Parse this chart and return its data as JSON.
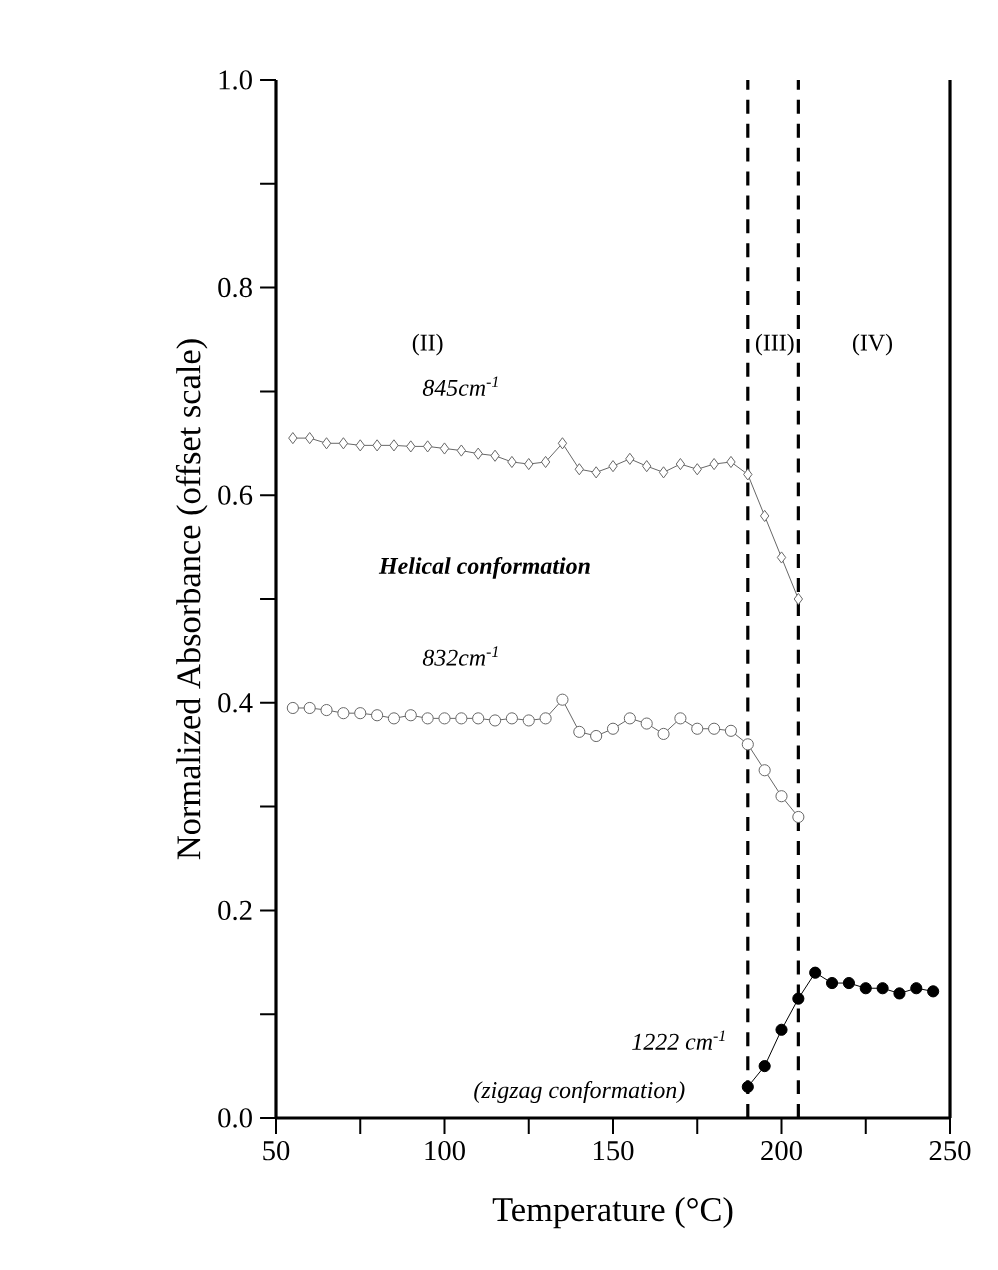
{
  "chart_data": {
    "type": "line",
    "xlabel": "Temperature (°C)",
    "ylabel": "Normalized  Absorbance (offset scale)",
    "xlim": [
      50,
      250
    ],
    "ylim": [
      0,
      1
    ],
    "xticks": [
      50,
      {
        "value": 75,
        "label": null
      },
      100,
      {
        "value": 125,
        "label": null
      },
      150,
      {
        "value": 175,
        "label": null
      },
      200,
      {
        "value": 225,
        "label": null
      },
      250
    ],
    "yticks": [
      {
        "value": 0,
        "label": "0.0"
      },
      {
        "value": 0.1,
        "label": null
      },
      0.2,
      {
        "value": 0.3,
        "label": null
      },
      0.4,
      {
        "value": 0.5,
        "label": null
      },
      0.6,
      {
        "value": 0.7,
        "label": null
      },
      0.8,
      {
        "value": 0.9,
        "label": null
      },
      {
        "value": 1,
        "label": "1.0"
      }
    ],
    "grid": false,
    "line_style": "solid",
    "series": [
      {
        "name": "845cm$^{-1}$",
        "color": "#666666",
        "marker": "diamond",
        "x": [
          55,
          60,
          65,
          70,
          75,
          80,
          85,
          90,
          95,
          100,
          105,
          110,
          115,
          120,
          125,
          130,
          135,
          140,
          145,
          150,
          155,
          160,
          165,
          170,
          175,
          180,
          185,
          190,
          195,
          200,
          205
        ],
        "values": [
          0.655,
          0.655,
          0.65,
          0.65,
          0.648,
          0.648,
          0.648,
          0.647,
          0.647,
          0.645,
          0.643,
          0.64,
          0.638,
          0.632,
          0.63,
          0.632,
          0.65,
          0.625,
          0.622,
          0.628,
          0.635,
          0.628,
          0.622,
          0.63,
          0.625,
          0.63,
          0.632,
          0.62,
          0.58,
          0.54,
          0.5
        ]
      },
      {
        "name": "832cm$^{-1}$",
        "color": "#666666",
        "marker": "circle",
        "x": [
          55,
          60,
          65,
          70,
          75,
          80,
          85,
          90,
          95,
          100,
          105,
          110,
          115,
          120,
          125,
          130,
          135,
          140,
          145,
          150,
          155,
          160,
          165,
          170,
          175,
          180,
          185,
          190,
          195,
          200,
          205
        ],
        "values": [
          0.395,
          0.395,
          0.393,
          0.39,
          0.39,
          0.388,
          0.385,
          0.388,
          0.385,
          0.385,
          0.385,
          0.385,
          0.383,
          0.385,
          0.383,
          0.385,
          0.403,
          0.372,
          0.368,
          0.375,
          0.385,
          0.38,
          0.37,
          0.385,
          0.375,
          0.375,
          0.373,
          0.36,
          0.335,
          0.31,
          0.29
        ]
      },
      {
        "name": "1222 cm$^{-1}$",
        "color": "#000000",
        "marker": "circle",
        "x": [
          190,
          195,
          200,
          205,
          210,
          215,
          220,
          225,
          230,
          235,
          240,
          245
        ],
        "values": [
          0.03,
          0.05,
          0.085,
          0.115,
          0.14,
          0.13,
          0.13,
          0.125,
          0.125,
          0.12,
          0.125,
          0.122
        ]
      }
    ],
    "ref_lines": [
      {
        "axis": "x",
        "value": 190,
        "color": "#000000",
        "line_style": "dashed"
      },
      {
        "axis": "x",
        "value": 205,
        "color": "#000000",
        "line_style": "dashed"
      }
    ],
    "annotations": [
      "(II)",
      "(III)",
      "(IV)",
      "Helical conformation",
      "(zigzag conformation)"
    ]
  }
}
